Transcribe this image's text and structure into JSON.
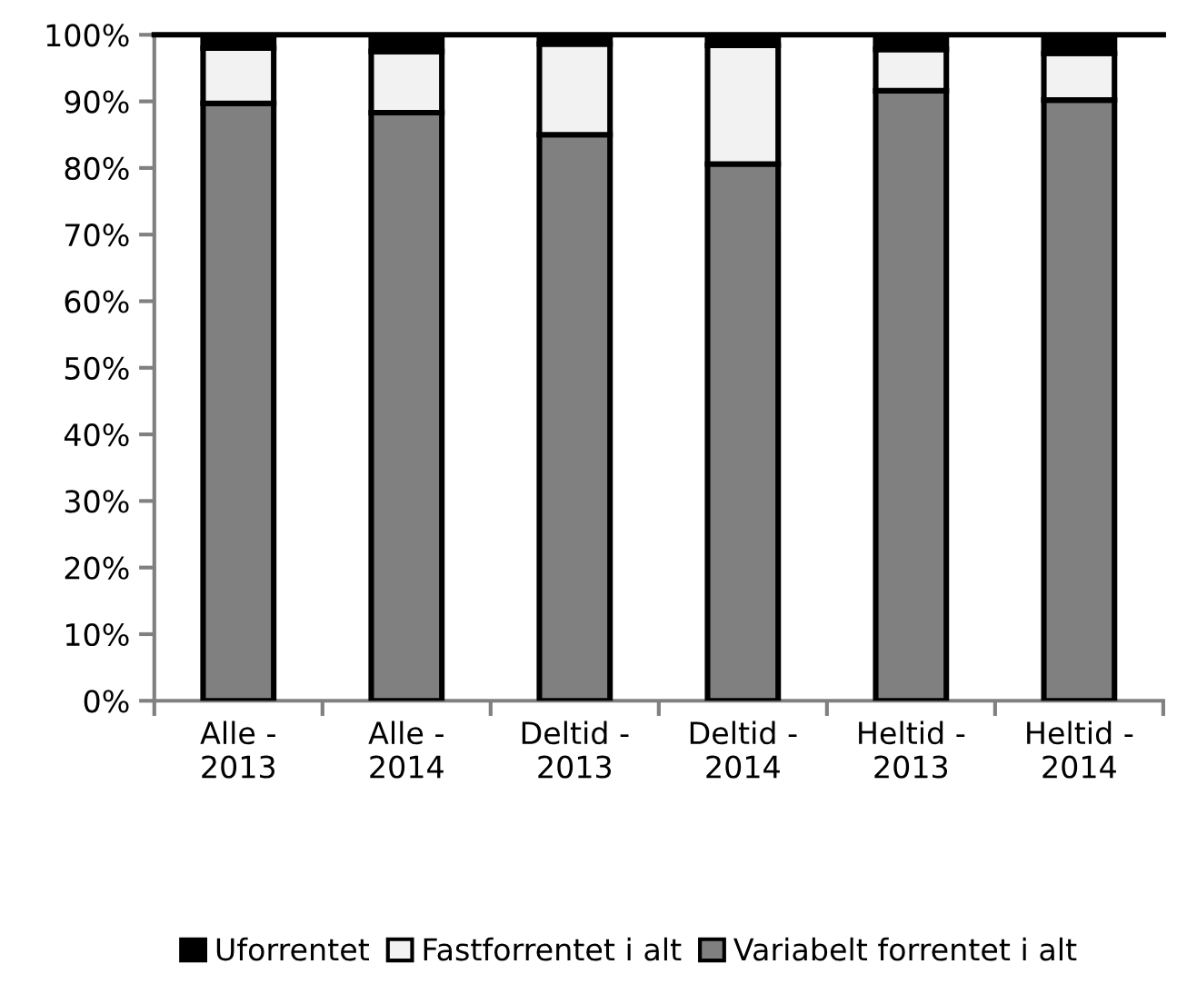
{
  "chart_data": {
    "type": "bar",
    "stacked": true,
    "categories": [
      "Alle -\n2013",
      "Alle -\n2014",
      "Deltid -\n2013",
      "Deltid -\n2014",
      "Heltid -\n2013",
      "Heltid -\n2014"
    ],
    "series": [
      {
        "name": "Variabelt forrentet i alt",
        "color": "#808080",
        "values": [
          89.7,
          88.3,
          85.0,
          80.6,
          91.6,
          90.2
        ]
      },
      {
        "name": "Fastforrentet i alt",
        "color": "#f2f2f2",
        "values": [
          8.3,
          9.2,
          13.6,
          17.8,
          6.2,
          7.0
        ]
      },
      {
        "name": "Uforrentet",
        "color": "#000000",
        "values": [
          2.0,
          2.5,
          1.4,
          1.6,
          2.2,
          2.8
        ]
      }
    ],
    "ylim": [
      0,
      100
    ],
    "yticks": [
      {
        "value": 0,
        "label": "0%"
      },
      {
        "value": 10,
        "label": "10%"
      },
      {
        "value": 20,
        "label": "20%"
      },
      {
        "value": 30,
        "label": "30%"
      },
      {
        "value": 40,
        "label": "40%"
      },
      {
        "value": 50,
        "label": "50%"
      },
      {
        "value": 60,
        "label": "60%"
      },
      {
        "value": 70,
        "label": "70%"
      },
      {
        "value": 80,
        "label": "80%"
      },
      {
        "value": 90,
        "label": "90%"
      },
      {
        "value": 100,
        "label": "100%"
      }
    ],
    "grid": false,
    "legend": "bottom"
  }
}
